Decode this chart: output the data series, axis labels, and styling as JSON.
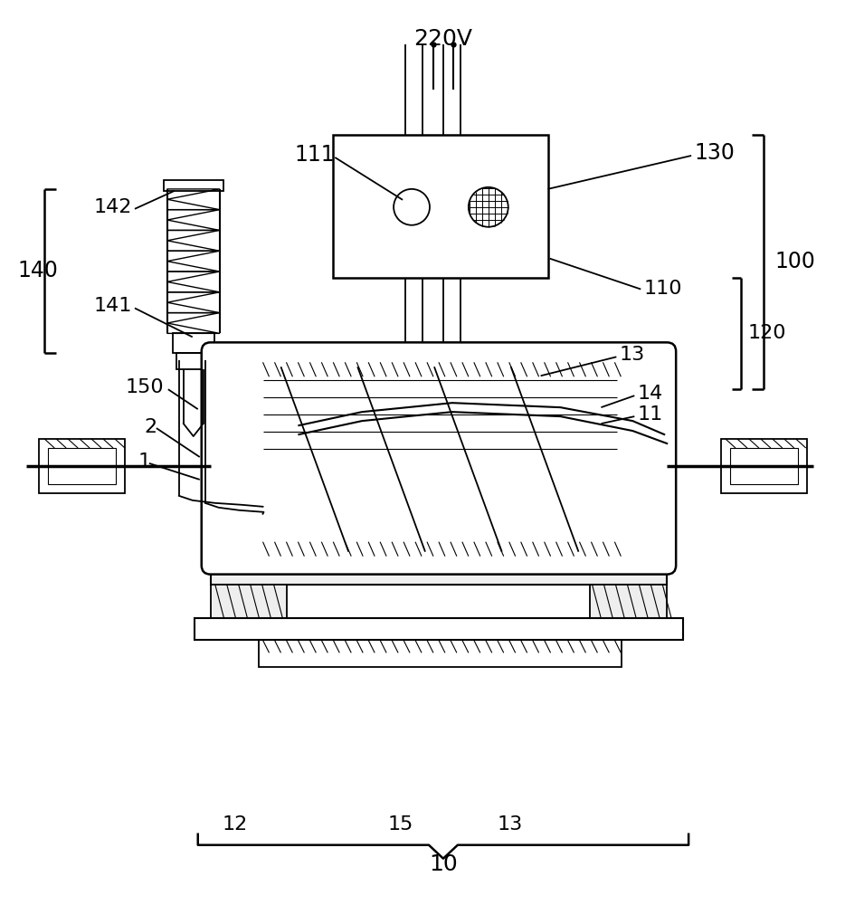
{
  "fig_width": 9.34,
  "fig_height": 10.0,
  "bg_color": "#ffffff",
  "line_color": "#000000",
  "lw_main": 1.5,
  "lw_thin": 1.0,
  "lw_thick": 2.5,
  "label_fs": 16,
  "label_fs_large": 18,
  "label_220V": "220V",
  "label_100": "100",
  "label_110": "110",
  "label_111": "111",
  "label_120": "120",
  "label_130": "130",
  "label_140": "140",
  "label_141": "141",
  "label_142": "142",
  "label_150": "150",
  "label_1": "1",
  "label_2": "2",
  "label_10": "10",
  "label_11": "11",
  "label_12": "12",
  "label_13": "13",
  "label_14": "14",
  "label_15": "15"
}
